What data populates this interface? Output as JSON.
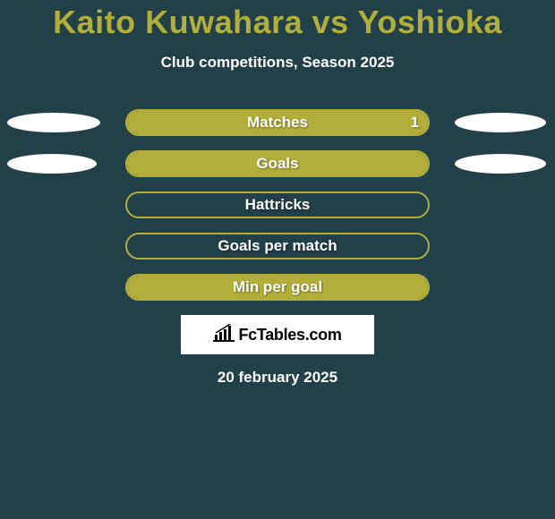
{
  "title": "Kaito Kuwahara vs Yoshioka",
  "subtitle": "Club competitions, Season 2025",
  "date": "20 february 2025",
  "logo_text": "FcTables.com",
  "colors": {
    "background": "#224048",
    "accent": "#b1ae3c",
    "pill": "#ffffff",
    "text": "#ffffff",
    "logo_bg": "#ffffff",
    "logo_text": "#000000"
  },
  "stats": [
    {
      "label": "Matches",
      "left_value": null,
      "right_value": "1",
      "left_pill_width": 104,
      "right_pill_width": 102,
      "fill_left_pct": 50,
      "fill_right_pct": 50
    },
    {
      "label": "Goals",
      "left_value": null,
      "right_value": null,
      "left_pill_width": 100,
      "right_pill_width": 102,
      "fill_left_pct": 50,
      "fill_right_pct": 50
    },
    {
      "label": "Hattricks",
      "left_value": null,
      "right_value": null,
      "left_pill_width": 0,
      "right_pill_width": 0,
      "fill_left_pct": 0,
      "fill_right_pct": 0
    },
    {
      "label": "Goals per match",
      "left_value": null,
      "right_value": null,
      "left_pill_width": 0,
      "right_pill_width": 0,
      "fill_left_pct": 0,
      "fill_right_pct": 0
    },
    {
      "label": "Min per goal",
      "left_value": null,
      "right_value": null,
      "left_pill_width": 0,
      "right_pill_width": 0,
      "fill_left_pct": 50,
      "fill_right_pct": 50
    }
  ]
}
